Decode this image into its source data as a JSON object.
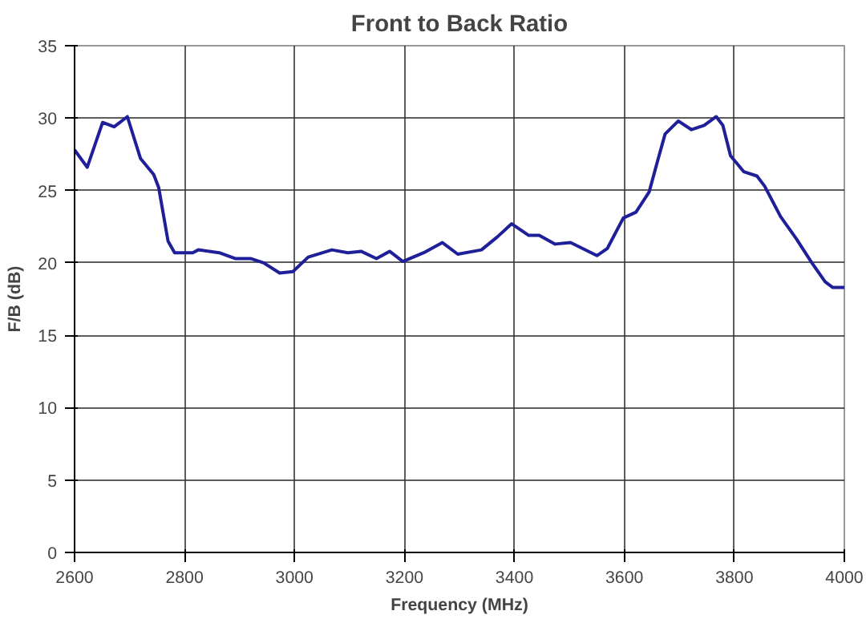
{
  "chart_data": {
    "type": "line",
    "title": "Front to Back Ratio",
    "xlabel": "Frequency (MHz)",
    "ylabel": "F/B (dB)",
    "xlim": [
      2600,
      4000
    ],
    "xticks": [
      2600,
      2800,
      3000,
      3200,
      3400,
      3600,
      3800,
      4000
    ],
    "ylim": [
      0,
      35
    ],
    "yticks": [
      0,
      5,
      10,
      15,
      20,
      25,
      30,
      35
    ],
    "grid": true,
    "marker": "none",
    "line_style": "solid",
    "series": [
      {
        "color": "#1f1f99",
        "x": [
          2600,
          2623,
          2651,
          2672,
          2696,
          2720,
          2744,
          2753,
          2770,
          2782,
          2815,
          2825,
          2863,
          2892,
          2920,
          2944,
          2973,
          2997,
          3025,
          3068,
          3097,
          3121,
          3149,
          3173,
          3197,
          3235,
          3269,
          3297,
          3340,
          3369,
          3395,
          3426,
          3445,
          3474,
          3502,
          3550,
          3569,
          3598,
          3621,
          3645,
          3660,
          3674,
          3698,
          3722,
          3745,
          3767,
          3779,
          3793,
          3817,
          3841,
          3855,
          3884,
          3912,
          3941,
          3965,
          3979,
          4000
        ],
        "values": [
          27.8,
          26.6,
          29.7,
          29.4,
          30.1,
          27.2,
          26.1,
          25.2,
          21.5,
          20.7,
          20.7,
          20.9,
          20.7,
          20.3,
          20.3,
          20.0,
          19.3,
          19.4,
          20.4,
          20.9,
          20.7,
          20.8,
          20.3,
          20.8,
          20.1,
          20.7,
          21.4,
          20.6,
          20.9,
          21.8,
          22.7,
          21.9,
          21.9,
          21.3,
          21.4,
          20.5,
          21.0,
          23.1,
          23.5,
          24.9,
          27.0,
          28.9,
          29.8,
          29.2,
          29.5,
          30.1,
          29.5,
          27.4,
          26.3,
          26.0,
          25.3,
          23.2,
          21.7,
          20.0,
          18.7,
          18.3,
          18.3
        ]
      }
    ]
  }
}
